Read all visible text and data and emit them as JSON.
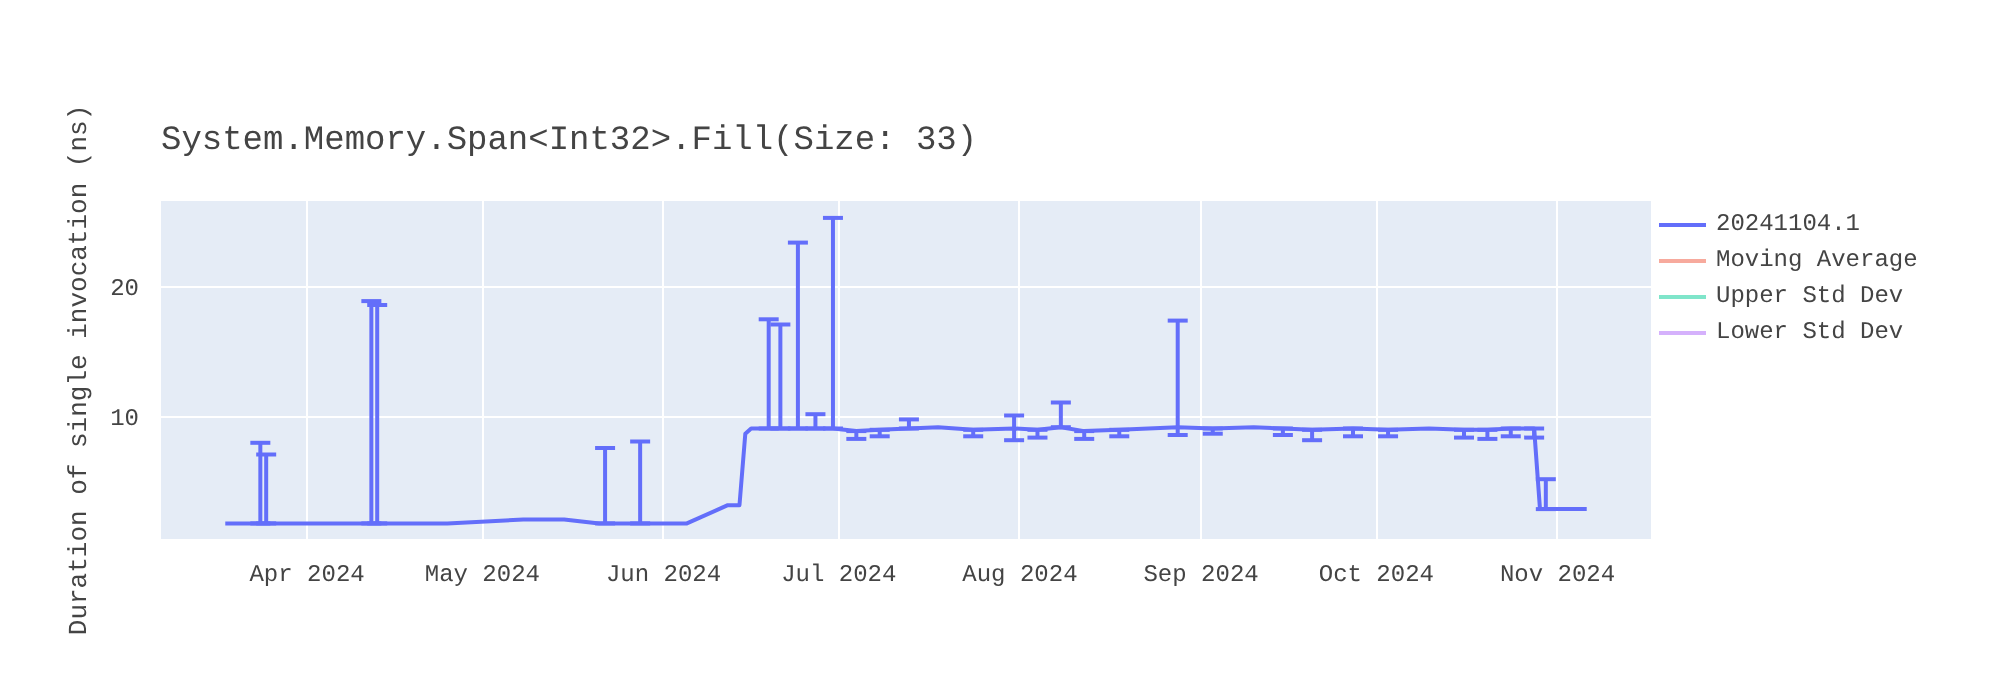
{
  "chart_data": {
    "type": "line",
    "title": "System.Memory.Span<Int32>.Fill(Size: 33)",
    "ylabel": "Duration of single invocation (ns)",
    "x": [
      "2024-03-18",
      "2024-03-24",
      "2024-03-25",
      "2024-04-05",
      "2024-04-12",
      "2024-04-13",
      "2024-04-25",
      "2024-05-08",
      "2024-05-15",
      "2024-05-21",
      "2024-05-22",
      "2024-05-28",
      "2024-06-05",
      "2024-06-12",
      "2024-06-14",
      "2024-06-15",
      "2024-06-16",
      "2024-06-19",
      "2024-06-21",
      "2024-06-24",
      "2024-06-27",
      "2024-06-30",
      "2024-07-04",
      "2024-07-08",
      "2024-07-13",
      "2024-07-18",
      "2024-07-24",
      "2024-07-31",
      "2024-08-04",
      "2024-08-08",
      "2024-08-12",
      "2024-08-18",
      "2024-08-23",
      "2024-08-28",
      "2024-09-03",
      "2024-09-10",
      "2024-09-15",
      "2024-09-20",
      "2024-09-27",
      "2024-10-03",
      "2024-10-10",
      "2024-10-16",
      "2024-10-20",
      "2024-10-24",
      "2024-10-28",
      "2024-10-29",
      "2024-10-30",
      "2024-11-06"
    ],
    "series": [
      {
        "name": "20241104.1",
        "color": "#636efa",
        "values": [
          1.8,
          1.8,
          1.8,
          1.8,
          1.8,
          1.8,
          1.8,
          2.1,
          2.1,
          1.8,
          1.8,
          1.8,
          1.8,
          3.2,
          3.2,
          8.7,
          9.1,
          9.1,
          9.1,
          9.1,
          9.1,
          9.1,
          8.9,
          9.0,
          9.1,
          9.2,
          9.0,
          9.1,
          9.0,
          9.2,
          8.9,
          9.0,
          9.1,
          9.2,
          9.1,
          9.2,
          9.1,
          9.0,
          9.1,
          9.0,
          9.1,
          9.0,
          9.0,
          9.1,
          9.1,
          2.9,
          2.9,
          2.9
        ],
        "errors": [
          null,
          [
            1.8,
            8.0
          ],
          [
            1.8,
            7.1
          ],
          null,
          [
            1.8,
            18.9
          ],
          [
            1.8,
            18.6
          ],
          null,
          null,
          null,
          null,
          [
            1.8,
            7.6
          ],
          [
            1.8,
            8.1
          ],
          null,
          null,
          null,
          null,
          null,
          [
            9.1,
            17.5
          ],
          [
            9.1,
            17.1
          ],
          [
            9.1,
            23.4
          ],
          [
            9.1,
            10.2
          ],
          [
            9.1,
            25.3
          ],
          [
            8.3,
            8.9
          ],
          [
            8.5,
            9.0
          ],
          [
            9.1,
            9.8
          ],
          null,
          [
            8.5,
            9.0
          ],
          [
            8.2,
            10.1
          ],
          [
            8.4,
            9.0
          ],
          [
            9.2,
            11.1
          ],
          [
            8.3,
            8.9
          ],
          [
            8.5,
            9.0
          ],
          null,
          [
            8.6,
            17.4
          ],
          [
            8.7,
            9.1
          ],
          null,
          [
            8.6,
            9.1
          ],
          [
            8.2,
            9.0
          ],
          [
            8.5,
            9.1
          ],
          [
            8.5,
            9.0
          ],
          null,
          [
            8.4,
            9.0
          ],
          [
            8.3,
            9.0
          ],
          [
            8.5,
            9.1
          ],
          [
            8.4,
            9.1
          ],
          null,
          [
            2.9,
            5.2
          ],
          null
        ]
      },
      {
        "name": "Moving Average",
        "color": "#ef553b",
        "values": [
          null,
          null,
          null,
          null,
          null,
          null,
          null,
          null,
          null,
          null,
          null,
          null,
          null,
          null,
          null,
          null,
          null,
          null,
          null,
          null,
          null,
          null,
          null,
          null,
          null,
          null,
          null,
          null,
          null,
          null,
          null,
          null,
          null,
          null,
          null,
          null,
          null,
          null,
          null,
          null,
          null,
          null,
          null,
          null,
          null,
          null,
          null,
          null
        ]
      },
      {
        "name": "Upper Std Dev",
        "color": "#00cc96",
        "values": [
          null,
          null,
          null,
          null,
          null,
          null,
          null,
          null,
          null,
          null,
          null,
          null,
          null,
          null,
          null,
          null,
          null,
          null,
          null,
          null,
          null,
          null,
          null,
          null,
          null,
          null,
          null,
          null,
          null,
          null,
          null,
          null,
          null,
          null,
          null,
          null,
          null,
          null,
          null,
          null,
          null,
          null,
          null,
          null,
          null,
          null,
          null,
          null
        ]
      },
      {
        "name": "Lower Std Dev",
        "color": "#ab63fa",
        "values": [
          null,
          null,
          null,
          null,
          null,
          null,
          null,
          null,
          null,
          null,
          null,
          null,
          null,
          null,
          null,
          null,
          null,
          null,
          null,
          null,
          null,
          null,
          null,
          null,
          null,
          null,
          null,
          null,
          null,
          null,
          null,
          null,
          null,
          null,
          null,
          null,
          null,
          null,
          null,
          null,
          null,
          null,
          null,
          null,
          null,
          null,
          null,
          null
        ]
      }
    ],
    "xlim": [
      "2024-03-07",
      "2024-11-17"
    ],
    "xticks": [
      {
        "value": "2024-04-01",
        "label": "Apr 2024"
      },
      {
        "value": "2024-05-01",
        "label": "May 2024"
      },
      {
        "value": "2024-06-01",
        "label": "Jun 2024"
      },
      {
        "value": "2024-07-01",
        "label": "Jul 2024"
      },
      {
        "value": "2024-08-01",
        "label": "Aug 2024"
      },
      {
        "value": "2024-09-01",
        "label": "Sep 2024"
      },
      {
        "value": "2024-10-01",
        "label": "Oct 2024"
      },
      {
        "value": "2024-11-01",
        "label": "Nov 2024"
      }
    ],
    "ylim": [
      0.6,
      26.6
    ],
    "yticks": [
      10,
      20
    ],
    "grid": true,
    "legend": "top right",
    "marker": "none",
    "line_style": "solid"
  }
}
